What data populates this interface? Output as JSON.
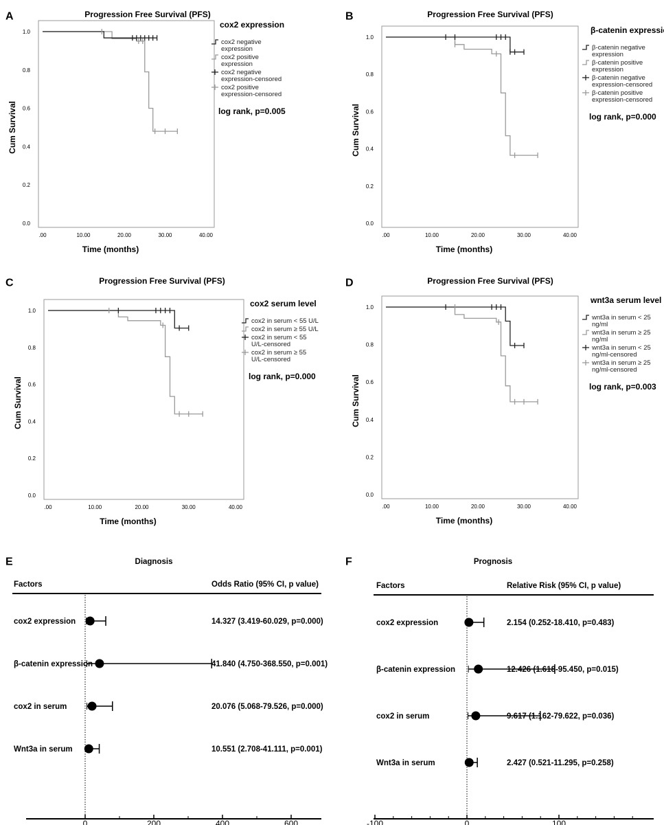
{
  "colors": {
    "negative": "#222222",
    "positive": "#9a9a9a",
    "axis": "#999999"
  },
  "km_panels": [
    {
      "panel": "A",
      "title": "Progression Free Survival (PFS)",
      "xlabel": "Time (months)",
      "ylabel": "Cum Survival",
      "legend_title": "cox2 expression",
      "legend": [
        "cox2 negative expression",
        "cox2 positive expression",
        "cox2 negative expression-censored",
        "cox2 positive expression-censored"
      ],
      "logrank": "log rank, p=0.005",
      "xticks": [
        ".00",
        "10.00",
        "20.00",
        "30.00",
        "40.00"
      ],
      "yticks": [
        "0.0",
        "0.2",
        "0.4",
        "0.6",
        "0.8",
        "1.0"
      ],
      "neg_steps": [
        [
          0,
          1.0
        ],
        [
          15,
          1.0
        ],
        [
          15,
          0.967
        ],
        [
          28,
          0.967
        ]
      ],
      "pos_steps": [
        [
          0,
          1.0
        ],
        [
          17,
          1.0
        ],
        [
          17,
          0.963
        ],
        [
          23,
          0.963
        ],
        [
          23,
          0.95
        ],
        [
          25,
          0.95
        ],
        [
          25,
          0.79
        ],
        [
          26,
          0.79
        ],
        [
          26,
          0.6
        ],
        [
          27,
          0.6
        ],
        [
          27,
          0.48
        ],
        [
          33,
          0.48
        ]
      ],
      "neg_censor": [
        [
          22,
          0.967
        ],
        [
          23,
          0.967
        ],
        [
          24,
          0.967
        ],
        [
          25,
          0.967
        ],
        [
          26,
          0.967
        ],
        [
          27,
          0.967
        ],
        [
          28,
          0.967
        ]
      ],
      "pos_censor": [
        [
          14.5,
          1.0
        ],
        [
          23.5,
          0.95
        ],
        [
          24.5,
          0.95
        ],
        [
          27.5,
          0.48
        ],
        [
          30,
          0.48
        ],
        [
          33,
          0.48
        ]
      ]
    },
    {
      "panel": "B",
      "title": "Progression Free Survival (PFS)",
      "xlabel": "Time (months)",
      "ylabel": "Cum Survival",
      "legend_title": "β-catenin expression",
      "legend": [
        "β-catenin negative expression",
        "β-catenin positive expression",
        "β-catenin negative expression-censored",
        "β-catenin positive expression-censored"
      ],
      "logrank": "log rank, p=0.000",
      "xticks": [
        ".00",
        "10.00",
        "20.00",
        "30.00",
        "40.00"
      ],
      "yticks": [
        "0.0",
        "0.2",
        "0.4",
        "0.6",
        "0.8",
        "1.0"
      ],
      "neg_steps": [
        [
          0,
          1.0
        ],
        [
          27,
          1.0
        ],
        [
          27,
          0.92
        ],
        [
          30,
          0.92
        ]
      ],
      "pos_steps": [
        [
          0,
          1.0
        ],
        [
          15,
          1.0
        ],
        [
          15,
          0.96
        ],
        [
          17,
          0.96
        ],
        [
          17,
          0.935
        ],
        [
          23,
          0.935
        ],
        [
          23,
          0.91
        ],
        [
          25,
          0.91
        ],
        [
          25,
          0.7
        ],
        [
          26,
          0.7
        ],
        [
          26,
          0.47
        ],
        [
          27,
          0.47
        ],
        [
          27,
          0.365
        ],
        [
          33,
          0.365
        ]
      ],
      "neg_censor": [
        [
          13,
          1.0
        ],
        [
          15,
          1.0
        ],
        [
          24,
          1.0
        ],
        [
          25,
          1.0
        ],
        [
          26,
          1.0
        ],
        [
          27,
          0.92
        ],
        [
          28,
          0.92
        ],
        [
          30,
          0.92
        ]
      ],
      "pos_censor": [
        [
          15,
          0.96
        ],
        [
          24,
          0.91
        ],
        [
          28,
          0.365
        ],
        [
          33,
          0.365
        ]
      ]
    },
    {
      "panel": "C",
      "title": "Progression Free Survival (PFS)",
      "xlabel": "Time (months)",
      "ylabel": "Cum Survival",
      "legend_title": "cox2 serum level",
      "legend": [
        "cox2 in serum < 55 U/L",
        "cox2 in serum ≥ 55 U/L",
        "cox2 in serum < 55 U/L-censored",
        "cox2 in serum ≥ 55 U/L-censored"
      ],
      "logrank": "log rank, p=0.000",
      "xticks": [
        ".00",
        "10.00",
        "20.00",
        "30.00",
        "40.00"
      ],
      "yticks": [
        "0.0",
        "0.2",
        "0.4",
        "0.6",
        "0.8",
        "1.0"
      ],
      "neg_steps": [
        [
          0,
          1.0
        ],
        [
          27,
          1.0
        ],
        [
          27,
          0.905
        ],
        [
          30,
          0.905
        ]
      ],
      "pos_steps": [
        [
          0,
          1.0
        ],
        [
          15,
          1.0
        ],
        [
          15,
          0.965
        ],
        [
          17,
          0.965
        ],
        [
          17,
          0.945
        ],
        [
          24,
          0.945
        ],
        [
          24,
          0.92
        ],
        [
          25,
          0.92
        ],
        [
          25,
          0.75
        ],
        [
          26,
          0.75
        ],
        [
          26,
          0.535
        ],
        [
          27,
          0.535
        ],
        [
          27,
          0.44
        ],
        [
          33,
          0.44
        ]
      ],
      "neg_censor": [
        [
          15,
          1.0
        ],
        [
          23,
          1.0
        ],
        [
          24,
          1.0
        ],
        [
          25,
          1.0
        ],
        [
          26,
          1.0
        ],
        [
          28,
          0.905
        ],
        [
          30,
          0.905
        ]
      ],
      "pos_censor": [
        [
          13,
          1.0
        ],
        [
          24.5,
          0.92
        ],
        [
          28,
          0.44
        ],
        [
          30,
          0.44
        ],
        [
          33,
          0.44
        ]
      ]
    },
    {
      "panel": "D",
      "title": "Progression Free Survival (PFS)",
      "xlabel": "Time (months)",
      "ylabel": "Cum Survival",
      "legend_title": "wnt3a serum level",
      "legend": [
        "wnt3a in serum < 25 ng/ml",
        "wnt3a in serum ≥ 25 ng/ml",
        "wnt3a in serum < 25 ng/ml-censored",
        "wnt3a in serum ≥ 25 ng/ml-censored"
      ],
      "logrank": "log rank, p=0.003",
      "xticks": [
        ".00",
        "10.00",
        "20.00",
        "30.00",
        "40.00"
      ],
      "yticks": [
        "0.0",
        "0.2",
        "0.4",
        "0.6",
        "0.8",
        "1.0"
      ],
      "neg_steps": [
        [
          0,
          1.0
        ],
        [
          26,
          1.0
        ],
        [
          26,
          0.925
        ],
        [
          27,
          0.925
        ],
        [
          27,
          0.795
        ],
        [
          30,
          0.795
        ]
      ],
      "pos_steps": [
        [
          0,
          1.0
        ],
        [
          15,
          1.0
        ],
        [
          15,
          0.96
        ],
        [
          17,
          0.96
        ],
        [
          17,
          0.94
        ],
        [
          24,
          0.94
        ],
        [
          24,
          0.92
        ],
        [
          25,
          0.92
        ],
        [
          25,
          0.74
        ],
        [
          26,
          0.74
        ],
        [
          26,
          0.58
        ],
        [
          27,
          0.58
        ],
        [
          27,
          0.495
        ],
        [
          33,
          0.495
        ]
      ],
      "neg_censor": [
        [
          13,
          1.0
        ],
        [
          23,
          1.0
        ],
        [
          24,
          1.0
        ],
        [
          25,
          1.0
        ],
        [
          28,
          0.795
        ],
        [
          30,
          0.795
        ]
      ],
      "pos_censor": [
        [
          15,
          1.0
        ],
        [
          24.5,
          0.92
        ],
        [
          28,
          0.495
        ],
        [
          30,
          0.495
        ],
        [
          33,
          0.495
        ]
      ]
    }
  ],
  "chart_data": [
    {
      "type": "line",
      "title": "Progression Free Survival (PFS) — cox2 expression",
      "xlabel": "Time (months)",
      "ylabel": "Cum Survival",
      "xlim": [
        0,
        40
      ],
      "ylim": [
        0,
        1
      ],
      "series": [
        {
          "name": "cox2 negative expression",
          "steps": [
            [
              0,
              1.0
            ],
            [
              15,
              0.967
            ],
            [
              28,
              0.967
            ]
          ]
        },
        {
          "name": "cox2 positive expression",
          "steps": [
            [
              0,
              1.0
            ],
            [
              17,
              0.963
            ],
            [
              23,
              0.95
            ],
            [
              25,
              0.79
            ],
            [
              26,
              0.6
            ],
            [
              27,
              0.48
            ],
            [
              33,
              0.48
            ]
          ]
        }
      ]
    },
    {
      "type": "line",
      "title": "Progression Free Survival (PFS) — β-catenin expression",
      "xlabel": "Time (months)",
      "ylabel": "Cum Survival",
      "xlim": [
        0,
        40
      ],
      "ylim": [
        0,
        1
      ],
      "series": [
        {
          "name": "β-catenin negative expression",
          "steps": [
            [
              0,
              1.0
            ],
            [
              27,
              0.92
            ],
            [
              30,
              0.92
            ]
          ]
        },
        {
          "name": "β-catenin positive expression",
          "steps": [
            [
              0,
              1.0
            ],
            [
              15,
              0.96
            ],
            [
              17,
              0.935
            ],
            [
              23,
              0.91
            ],
            [
              25,
              0.7
            ],
            [
              26,
              0.47
            ],
            [
              27,
              0.365
            ],
            [
              33,
              0.365
            ]
          ]
        }
      ]
    },
    {
      "type": "line",
      "title": "Progression Free Survival (PFS) — cox2 serum level",
      "xlabel": "Time (months)",
      "ylabel": "Cum Survival",
      "xlim": [
        0,
        40
      ],
      "ylim": [
        0,
        1
      ],
      "series": [
        {
          "name": "cox2 in serum < 55 U/L",
          "steps": [
            [
              0,
              1.0
            ],
            [
              27,
              0.905
            ],
            [
              30,
              0.905
            ]
          ]
        },
        {
          "name": "cox2 in serum ≥ 55 U/L",
          "steps": [
            [
              0,
              1.0
            ],
            [
              15,
              0.965
            ],
            [
              17,
              0.945
            ],
            [
              24,
              0.92
            ],
            [
              25,
              0.75
            ],
            [
              26,
              0.535
            ],
            [
              27,
              0.44
            ],
            [
              33,
              0.44
            ]
          ]
        }
      ]
    },
    {
      "type": "line",
      "title": "Progression Free Survival (PFS) — wnt3a serum level",
      "xlabel": "Time (months)",
      "ylabel": "Cum Survival",
      "xlim": [
        0,
        40
      ],
      "ylim": [
        0,
        1
      ],
      "series": [
        {
          "name": "wnt3a in serum < 25 ng/ml",
          "steps": [
            [
              0,
              1.0
            ],
            [
              26,
              0.925
            ],
            [
              27,
              0.795
            ],
            [
              30,
              0.795
            ]
          ]
        },
        {
          "name": "wnt3a in serum ≥ 25 ng/ml",
          "steps": [
            [
              0,
              1.0
            ],
            [
              15,
              0.96
            ],
            [
              17,
              0.94
            ],
            [
              24,
              0.92
            ],
            [
              25,
              0.74
            ],
            [
              26,
              0.58
            ],
            [
              27,
              0.495
            ],
            [
              33,
              0.495
            ]
          ]
        }
      ]
    },
    {
      "type": "scatter",
      "subtype": "forest",
      "title": "Diagnosis",
      "xlim": [
        0,
        600
      ],
      "xticks": [
        "0",
        "200",
        "400",
        "600"
      ],
      "categories": [
        "cox2 expression",
        "β-catenin expression",
        "cox2 in serum",
        "Wnt3a in serum"
      ],
      "values": [
        14.327,
        41.84,
        20.076,
        10.551
      ],
      "ci_low": [
        3.419,
        4.75,
        5.068,
        2.708
      ],
      "ci_high": [
        60.029,
        368.55,
        79.526,
        41.111
      ]
    },
    {
      "type": "scatter",
      "subtype": "forest",
      "title": "Prognosis",
      "xlim": [
        -100,
        200
      ],
      "xticks": [
        "-100",
        "0",
        "100"
      ],
      "categories": [
        "cox2 expression",
        "β-catenin expression",
        "cox2 in serum",
        "Wnt3a in serum"
      ],
      "values": [
        2.154,
        12.426,
        9.617,
        2.427
      ],
      "ci_low": [
        0.252,
        1.618,
        1.162,
        0.521
      ],
      "ci_high": [
        18.41,
        95.45,
        79.622,
        11.295
      ]
    }
  ],
  "forest_panels": [
    {
      "panel": "E",
      "title": "Diagnosis",
      "factors_header": "Factors",
      "stat_header": "Odds Ratio (95% CI, p value)",
      "xticks": [
        "0",
        "200",
        "400",
        "600"
      ],
      "tick_values": [
        0,
        200,
        400,
        600
      ],
      "xlim": [
        0,
        600
      ],
      "rows": [
        {
          "label": "cox2 expression",
          "value": 14.327,
          "low": 3.419,
          "high": 60.029,
          "text": "14.327 (3.419-60.029, p=0.000)"
        },
        {
          "label": "β-catenin expression",
          "value": 41.84,
          "low": 4.75,
          "high": 368.55,
          "text": "41.840 (4.750-368.550, p=0.001)"
        },
        {
          "label": "cox2 in serum",
          "value": 20.076,
          "low": 5.068,
          "high": 79.526,
          "text": "20.076 (5.068-79.526, p=0.000)"
        },
        {
          "label": "Wnt3a in serum",
          "value": 10.551,
          "low": 2.708,
          "high": 41.111,
          "text": "10.551 (2.708-41.111, p=0.001)"
        }
      ]
    },
    {
      "panel": "F",
      "title": "Prognosis",
      "factors_header": "Factors",
      "stat_header": "Relative Risk (95% CI, p value)",
      "xticks": [
        "-100",
        "0",
        "100"
      ],
      "tick_values": [
        -100,
        0,
        100
      ],
      "xlim": [
        -100,
        200
      ],
      "rows": [
        {
          "label": "cox2 expression",
          "value": 2.154,
          "low": 0.252,
          "high": 18.41,
          "text": "2.154 (0.252-18.410, p=0.483)"
        },
        {
          "label": "β-catenin expression",
          "value": 12.426,
          "low": 1.618,
          "high": 95.45,
          "text": "12.426 (1.618-95.450, p=0.015)"
        },
        {
          "label": "cox2 in serum",
          "value": 9.617,
          "low": 1.162,
          "high": 79.622,
          "text": "9.617 (1.162-79.622, p=0.036)"
        },
        {
          "label": "Wnt3a in serum",
          "value": 2.427,
          "low": 0.521,
          "high": 11.295,
          "text": "2.427 (0.521-11.295, p=0.258)"
        }
      ]
    }
  ]
}
